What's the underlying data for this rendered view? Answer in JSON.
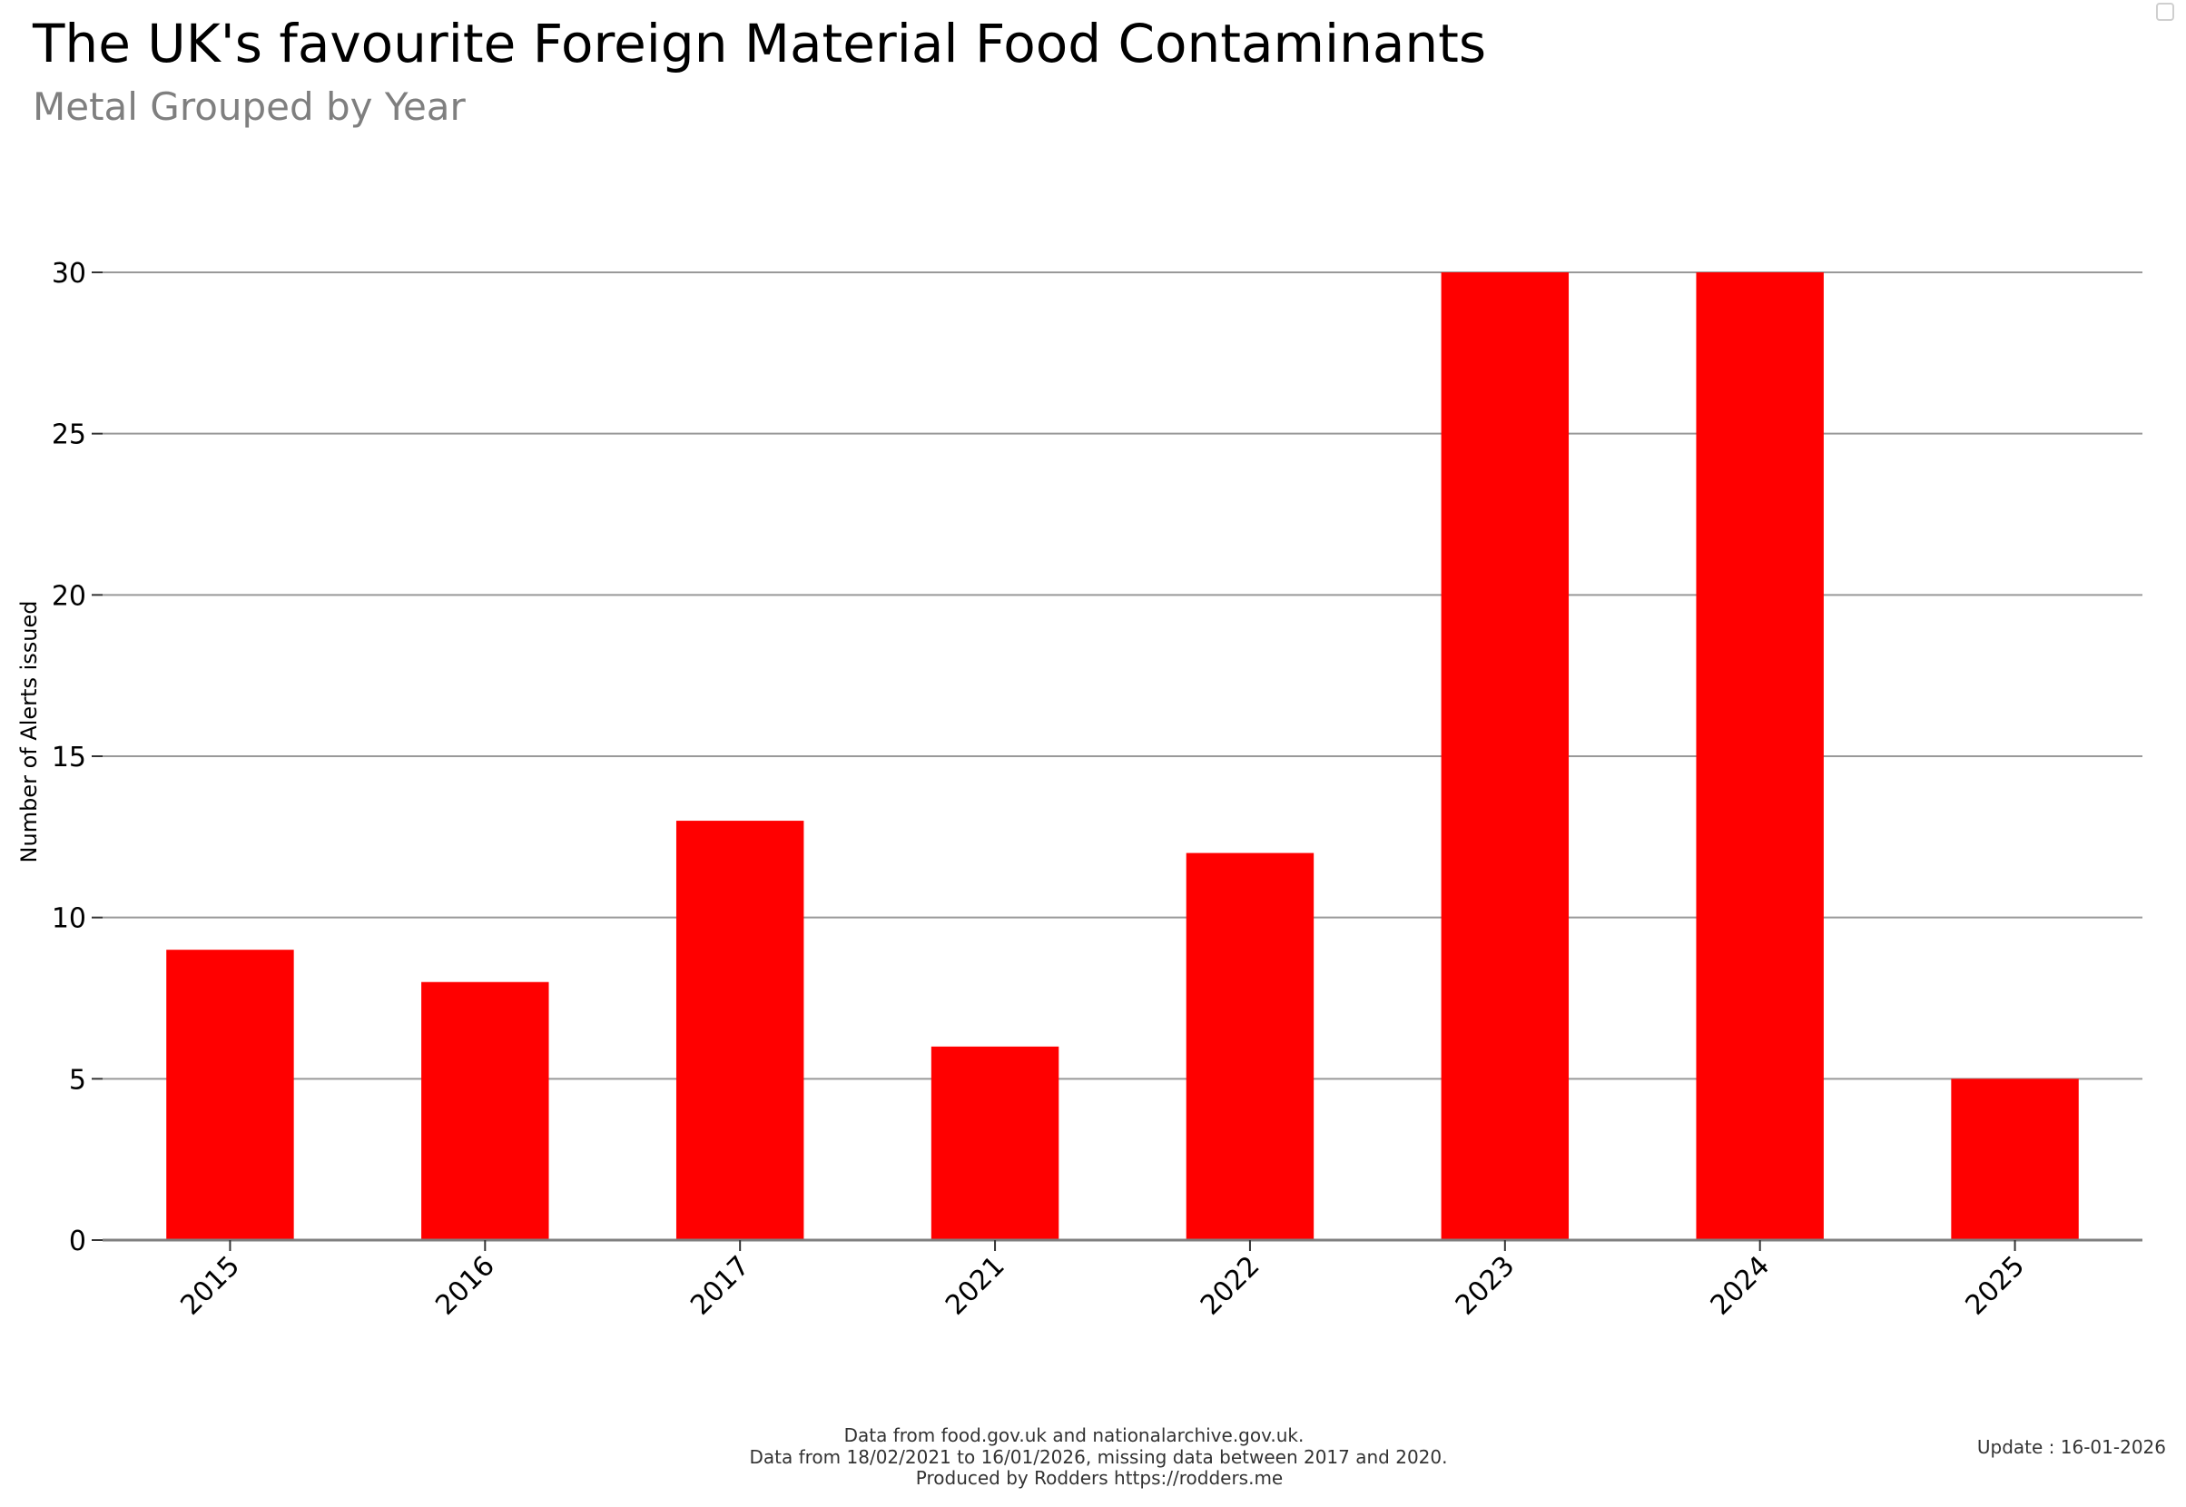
{
  "chart_data": {
    "type": "bar",
    "title": "The UK's favourite Foreign Material Food Contaminants",
    "subtitle": "Metal Grouped by Year",
    "xlabel": "",
    "ylabel": "Number of Alerts issued",
    "categories": [
      "2015",
      "2016",
      "2017",
      "2021",
      "2022",
      "2023",
      "2024",
      "2025"
    ],
    "values": [
      9,
      8,
      13,
      6,
      12,
      30,
      30,
      5
    ],
    "ylim": [
      0,
      30
    ],
    "yticks": [
      "0",
      "5",
      "10",
      "15",
      "20",
      "25",
      "30"
    ],
    "grid": true,
    "bar_color": "#ff0000",
    "grid_color": "#999999"
  },
  "footer": {
    "line1": "Data from food.gov.uk and nationalarchive.gov.uk.",
    "line2": "Data from 18/02/2021 to 16/01/2026, missing data between 2017 and 2020.",
    "line3": "Produced by Rodders https://rodders.me",
    "update": "Update : 16-01-2026"
  }
}
